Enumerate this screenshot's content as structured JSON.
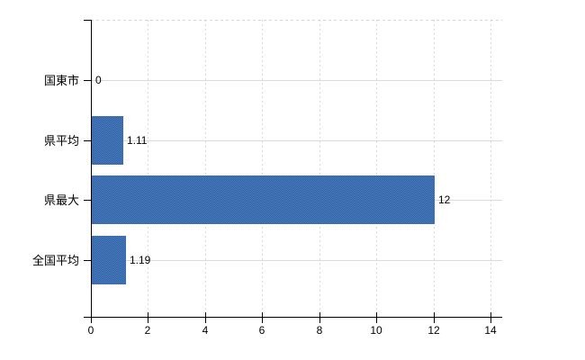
{
  "chart_data": {
    "type": "bar",
    "orientation": "horizontal",
    "title": "",
    "xlabel": "",
    "ylabel": "",
    "categories": [
      "国東市",
      "県平均",
      "県最大",
      "全国平均"
    ],
    "values": [
      0,
      1.11,
      12,
      1.19
    ],
    "value_labels": [
      "0",
      "1.11",
      "12",
      "1.19"
    ],
    "x_ticks": [
      0,
      2,
      4,
      6,
      8,
      10,
      12,
      14
    ],
    "x_tick_labels": [
      "0",
      "2",
      "4",
      "6",
      "8",
      "10",
      "12",
      "14"
    ],
    "xlim": [
      0,
      14.4
    ],
    "grid": true,
    "legend": false,
    "colors": {
      "bar": "#3d6faf",
      "bar_dither_light": "#4a79c0",
      "bar_dither_dark": "#2f63a2",
      "axis": "#000000",
      "grid_horizontal": "#d6ded6",
      "grid_vertical": "#d8d8de",
      "text": "#000000",
      "background": "#ffffff"
    }
  }
}
